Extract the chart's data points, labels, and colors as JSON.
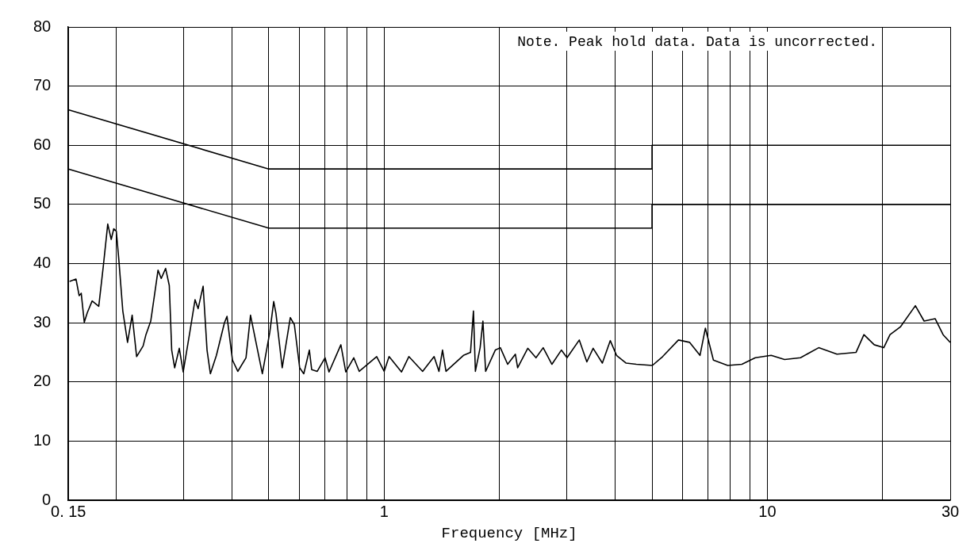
{
  "chart_data": {
    "type": "line",
    "xlabel": "Frequency [MHz]",
    "log": "x",
    "grid": true,
    "legend": false,
    "xlim": [
      0.15,
      30
    ],
    "ylim": [
      0,
      80
    ],
    "xticks": [
      {
        "value": 0.15,
        "label": "0. 15"
      },
      {
        "value": 0.2,
        "label": null
      },
      {
        "value": 0.3,
        "label": null
      },
      {
        "value": 0.4,
        "label": null
      },
      {
        "value": 0.5,
        "label": null
      },
      {
        "value": 0.6,
        "label": null
      },
      {
        "value": 0.7,
        "label": null
      },
      {
        "value": 0.8,
        "label": null
      },
      {
        "value": 0.9,
        "label": null
      },
      1,
      {
        "value": 2,
        "label": null
      },
      {
        "value": 3,
        "label": null
      },
      {
        "value": 4,
        "label": null
      },
      {
        "value": 5,
        "label": null
      },
      {
        "value": 6,
        "label": null
      },
      {
        "value": 7,
        "label": null
      },
      {
        "value": 8,
        "label": null
      },
      {
        "value": 9,
        "label": null
      },
      10,
      {
        "value": 20,
        "label": null
      },
      30
    ],
    "yticks": [
      0,
      10,
      20,
      30,
      40,
      50,
      60,
      70,
      80
    ],
    "annotations": [
      "Note. Peak hold data. Data is uncorrected."
    ],
    "series": [
      {
        "color": "#000000",
        "x": [
          0.151,
          0.157,
          0.16,
          0.162,
          0.165,
          0.168,
          0.173,
          0.18,
          0.185,
          0.19,
          0.194,
          0.197,
          0.2,
          0.203,
          0.208,
          0.214,
          0.22,
          0.226,
          0.235,
          0.239,
          0.246,
          0.252,
          0.257,
          0.262,
          0.269,
          0.275,
          0.279,
          0.284,
          0.292,
          0.299,
          0.312,
          0.321,
          0.327,
          0.337,
          0.345,
          0.352,
          0.365,
          0.383,
          0.389,
          0.402,
          0.415,
          0.436,
          0.448,
          0.463,
          0.481,
          0.503,
          0.515,
          0.522,
          0.542,
          0.569,
          0.583,
          0.602,
          0.617,
          0.638,
          0.647,
          0.669,
          0.701,
          0.718,
          0.771,
          0.794,
          0.833,
          0.861,
          0.956,
          1.0,
          1.03,
          1.11,
          1.16,
          1.26,
          1.35,
          1.39,
          1.42,
          1.45,
          1.61,
          1.68,
          1.71,
          1.73,
          1.78,
          1.81,
          1.84,
          1.95,
          2.01,
          2.1,
          2.2,
          2.23,
          2.37,
          2.49,
          2.6,
          2.74,
          2.9,
          3.0,
          3.23,
          3.38,
          3.51,
          3.71,
          3.89,
          4.04,
          4.28,
          4.55,
          5.01,
          5.33,
          5.86,
          6.27,
          6.67,
          6.89,
          7.23,
          7.88,
          8.58,
          9.3,
          10.23,
          11.09,
          12.2,
          13.61,
          15.19,
          17.03,
          17.86,
          19.0,
          20.12,
          20.89,
          22.23,
          24.33,
          25.64,
          27.41,
          28.74,
          30
        ],
        "values": [
          37.0,
          37.4,
          34.6,
          35.0,
          30.1,
          31.7,
          33.7,
          32.8,
          39.6,
          46.7,
          44.1,
          45.9,
          45.5,
          40.8,
          32.0,
          26.7,
          31.3,
          24.3,
          26.1,
          28.0,
          30.3,
          35.0,
          38.9,
          37.5,
          39.2,
          36.3,
          25.4,
          22.4,
          25.7,
          21.7,
          28.9,
          33.9,
          32.4,
          36.2,
          25.4,
          21.4,
          24.5,
          30.0,
          31.1,
          23.7,
          21.8,
          24.1,
          31.3,
          26.7,
          21.4,
          28.4,
          33.6,
          31.6,
          22.4,
          30.9,
          29.7,
          22.4,
          21.4,
          25.4,
          22.1,
          21.8,
          24.1,
          21.7,
          26.3,
          21.7,
          24.1,
          21.8,
          24.3,
          21.8,
          24.3,
          21.7,
          24.3,
          21.8,
          24.3,
          21.8,
          25.4,
          21.8,
          24.5,
          25.0,
          32.0,
          21.8,
          25.8,
          30.3,
          21.8,
          25.4,
          25.8,
          23.0,
          24.7,
          22.4,
          25.7,
          24.1,
          25.8,
          23.0,
          25.4,
          24.1,
          27.1,
          23.4,
          25.7,
          23.2,
          27.0,
          24.5,
          23.2,
          23.0,
          22.8,
          24.3,
          27.1,
          26.7,
          24.5,
          29.1,
          23.7,
          22.8,
          23.0,
          24.1,
          24.5,
          23.8,
          24.1,
          25.8,
          24.7,
          25.0,
          28.0,
          26.3,
          25.8,
          28.0,
          29.3,
          32.9,
          30.3,
          30.7,
          28.0,
          26.7
        ]
      },
      {
        "color": "#000000",
        "x": [
          0.15,
          0.5,
          5,
          5,
          30
        ],
        "values": [
          66,
          56,
          56,
          60,
          60
        ]
      },
      {
        "color": "#000000",
        "x": [
          0.15,
          0.5,
          5,
          5,
          30
        ],
        "values": [
          56,
          46,
          46,
          50,
          50
        ]
      }
    ]
  }
}
